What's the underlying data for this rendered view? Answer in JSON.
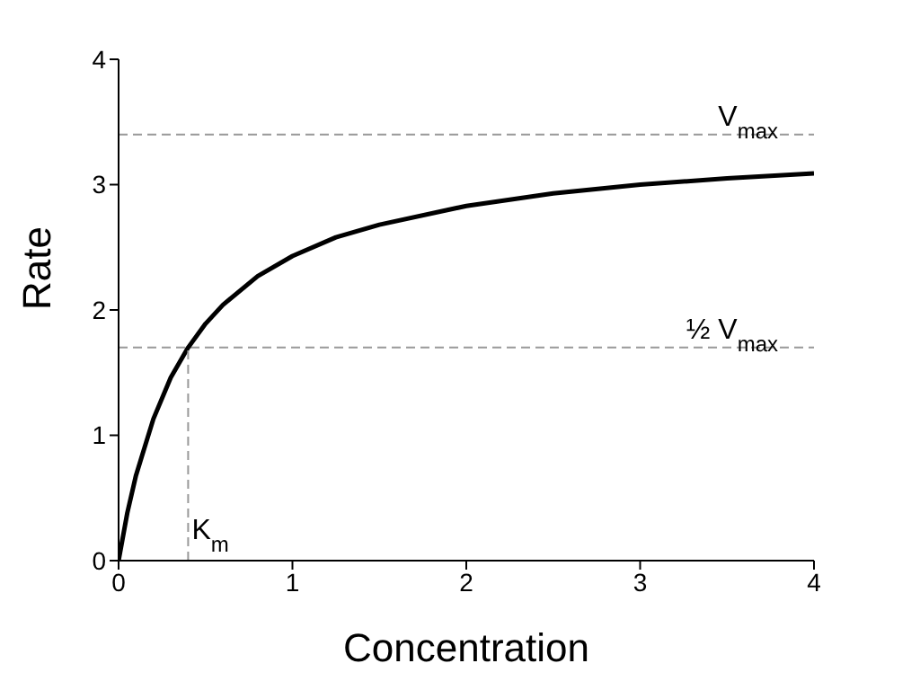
{
  "chart_data": {
    "type": "line",
    "xlabel": "Concentration",
    "ylabel": "Rate",
    "xlim": [
      0,
      4
    ],
    "ylim": [
      0,
      4
    ],
    "xticks": [
      0,
      1,
      2,
      3,
      4
    ],
    "yticks": [
      0,
      1,
      2,
      3,
      4
    ],
    "grid": false,
    "legend": false,
    "marker": "none",
    "series": [
      {
        "color": "#000000",
        "line_style": "solid",
        "x": [
          0,
          0.05,
          0.1,
          0.2,
          0.3,
          0.4,
          0.5,
          0.6,
          0.8,
          1,
          1.25,
          1.5,
          2,
          2.5,
          3,
          3.5,
          4
        ],
        "values": [
          0,
          0.38,
          0.68,
          1.13,
          1.46,
          1.7,
          1.89,
          2.04,
          2.27,
          2.43,
          2.58,
          2.68,
          2.83,
          2.93,
          3.0,
          3.05,
          3.09
        ]
      },
      {
        "color": "#999999",
        "line_style": "dashed",
        "x": [
          0.4,
          0.4
        ],
        "values": [
          0,
          1.7
        ]
      }
    ],
    "ref_lines": [
      {
        "axis": "y",
        "value": 3.4,
        "label": "V$_{max}$",
        "color": "#999999",
        "line_style": "dashed"
      },
      {
        "axis": "y",
        "value": 1.7,
        "label": "½ V$_{max}$",
        "color": "#999999",
        "line_style": "dashed"
      }
    ],
    "annotations": [
      {
        "text": "K$_{m}$",
        "x": 0.4,
        "y": 0
      }
    ]
  }
}
